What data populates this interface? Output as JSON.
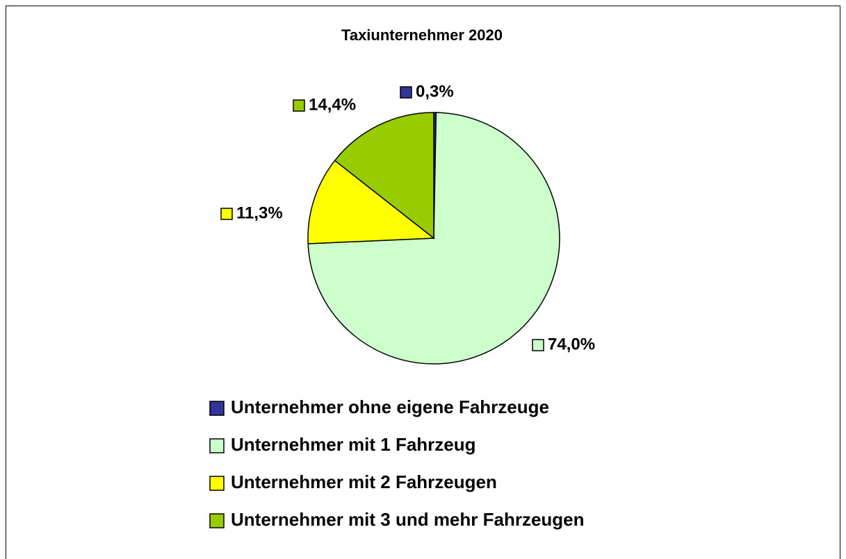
{
  "chart_data": {
    "type": "pie",
    "title": "Taxiunternehmer 2020",
    "categories": [
      "Unternehmer ohne eigene Fahrzeuge",
      "Unternehmer mit 1 Fahrzeug",
      "Unternehmer mit 2 Fahrzeugen",
      "Unternehmer mit 3 und mehr Fahrzeugen"
    ],
    "values": [
      0.3,
      74.0,
      11.3,
      14.4
    ],
    "value_labels": [
      "0,3%",
      "74,0%",
      "11,3%",
      "14,4%"
    ],
    "colors": [
      "#333399",
      "#ccffcc",
      "#ffff00",
      "#99cc00"
    ]
  }
}
